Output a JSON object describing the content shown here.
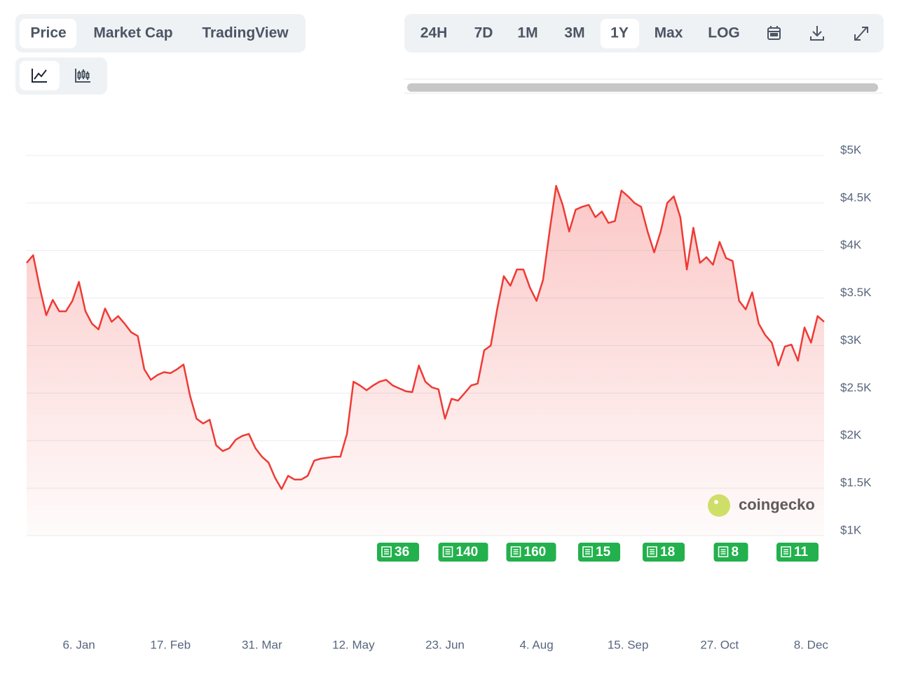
{
  "tabs": [
    "Price",
    "Market Cap",
    "TradingView"
  ],
  "ranges": [
    "24H",
    "7D",
    "1M",
    "3M",
    "1Y",
    "Max",
    "LOG"
  ],
  "watermark": "coingecko",
  "news": [
    36,
    140,
    160,
    15,
    18,
    8,
    11
  ],
  "chart_data": {
    "type": "area",
    "categories": [
      null,
      null,
      null,
      null,
      null,
      null,
      null,
      null,
      "6. Jan",
      null,
      null,
      null,
      null,
      null,
      null,
      null,
      null,
      null,
      null,
      null,
      null,
      null,
      "17. Feb",
      null,
      null,
      null,
      null,
      null,
      null,
      null,
      null,
      null,
      null,
      null,
      null,
      null,
      "31. Mar",
      null,
      null,
      null,
      null,
      null,
      null,
      null,
      null,
      null,
      null,
      null,
      null,
      null,
      "12. May",
      null,
      null,
      null,
      null,
      null,
      null,
      null,
      null,
      null,
      null,
      null,
      null,
      null,
      "23. Jun",
      null,
      null,
      null,
      null,
      null,
      null,
      null,
      null,
      null,
      null,
      null,
      null,
      null,
      "4. Aug",
      null,
      null,
      null,
      null,
      null,
      null,
      null,
      null,
      null,
      null,
      null,
      null,
      null,
      "15. Sep",
      null,
      null,
      null,
      null,
      null,
      null,
      null,
      null,
      null,
      null,
      null,
      null,
      null,
      "27. Oct",
      null,
      null,
      null,
      null,
      null,
      null,
      null,
      null,
      null,
      null,
      null,
      null,
      null,
      "8. Dec",
      null,
      null
    ],
    "series": [
      {
        "name": "Price",
        "color": "#ef3a35",
        "values": [
          3870,
          3950,
          3610,
          3320,
          3480,
          3360,
          3360,
          3470,
          3670,
          3360,
          3230,
          3170,
          3390,
          3250,
          3310,
          3230,
          3140,
          3100,
          2750,
          2640,
          2690,
          2720,
          2710,
          2750,
          2800,
          2470,
          2230,
          2180,
          2220,
          1950,
          1890,
          1920,
          2010,
          2050,
          2070,
          1920,
          1830,
          1770,
          1610,
          1490,
          1630,
          1590,
          1590,
          1630,
          1790,
          1810,
          1820,
          1830,
          1830,
          2070,
          2620,
          2580,
          2530,
          2580,
          2620,
          2640,
          2580,
          2550,
          2520,
          2510,
          2790,
          2620,
          2560,
          2540,
          2230,
          2440,
          2420,
          2500,
          2580,
          2600,
          2950,
          3000,
          3390,
          3730,
          3630,
          3800,
          3800,
          3610,
          3470,
          3690,
          4200,
          4680,
          4480,
          4200,
          4430,
          4460,
          4480,
          4350,
          4410,
          4290,
          4310,
          4630,
          4570,
          4500,
          4460,
          4200,
          3980,
          4200,
          4500,
          4570,
          4350,
          3800,
          4240,
          3870,
          3930,
          3850,
          4090,
          3920,
          3890,
          3470,
          3380,
          3560,
          3230,
          3110,
          3030,
          2790,
          2990,
          3010,
          2840,
          3190,
          3030,
          3310,
          3250
        ]
      }
    ],
    "ylim": [
      1000,
      5000
    ],
    "yticks": [
      {
        "value": 1000,
        "label": "$1K"
      },
      {
        "value": 1500,
        "label": "$1.5K"
      },
      {
        "value": 2000,
        "label": "$2K"
      },
      {
        "value": 2500,
        "label": "$2.5K"
      },
      {
        "value": 3000,
        "label": "$3K"
      },
      {
        "value": 3500,
        "label": "$3.5K"
      },
      {
        "value": 4000,
        "label": "$4K"
      },
      {
        "value": 4500,
        "label": "$4.5K"
      },
      {
        "value": 5000,
        "label": "$5K"
      }
    ],
    "grid": true
  }
}
